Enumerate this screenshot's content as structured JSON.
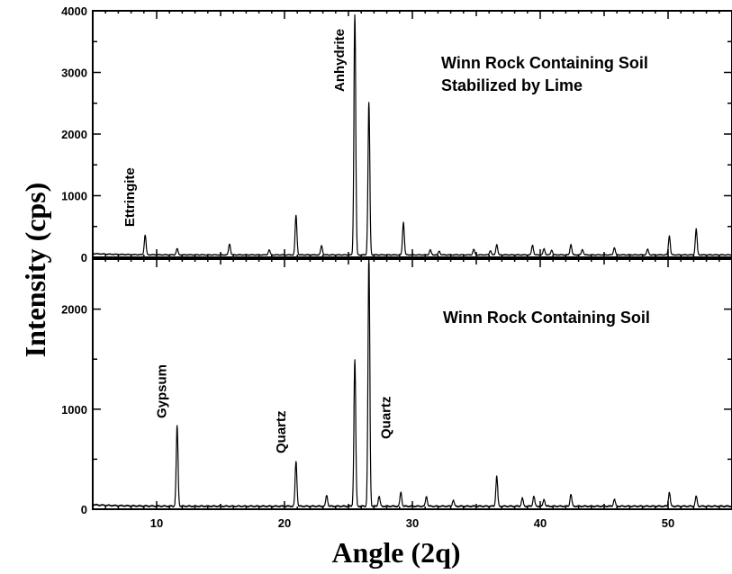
{
  "chart_data": {
    "type": "line",
    "xlabel": "Angle (2q)",
    "ylabel": "Intensity (cps)",
    "xlim": [
      5,
      55
    ],
    "x_ticks": [
      10,
      20,
      30,
      40,
      50
    ],
    "grid": false,
    "panels": [
      {
        "id": "top",
        "title_lines": [
          "Winn Rock Containing Soil",
          "Stabilized by Lime"
        ],
        "ylim": [
          0,
          4000
        ],
        "y_ticks": [
          0,
          1000,
          2000,
          3000,
          4000
        ],
        "baseline": 40,
        "peaks": [
          [
            9.1,
            320
          ],
          [
            11.6,
            100
          ],
          [
            15.7,
            180
          ],
          [
            18.8,
            80
          ],
          [
            20.9,
            640
          ],
          [
            22.9,
            150
          ],
          [
            25.5,
            3900
          ],
          [
            26.6,
            2470
          ],
          [
            29.3,
            530
          ],
          [
            31.4,
            80
          ],
          [
            32.1,
            60
          ],
          [
            34.8,
            90
          ],
          [
            36.1,
            70
          ],
          [
            36.6,
            170
          ],
          [
            39.4,
            160
          ],
          [
            40.3,
            100
          ],
          [
            40.9,
            80
          ],
          [
            42.4,
            170
          ],
          [
            43.3,
            90
          ],
          [
            45.8,
            120
          ],
          [
            48.4,
            90
          ],
          [
            50.1,
            310
          ],
          [
            52.2,
            420
          ]
        ],
        "annotations": [
          {
            "label": "Ettringite",
            "x": 9.1
          },
          {
            "label": "Anhydrite",
            "x": 25.5
          }
        ]
      },
      {
        "id": "bottom",
        "title_lines": [
          "Winn Rock Containing Soil"
        ],
        "ylim": [
          0,
          2500
        ],
        "y_ticks": [
          0,
          1000,
          2000
        ],
        "baseline": 30,
        "peaks": [
          [
            11.6,
            800
          ],
          [
            20.9,
            450
          ],
          [
            23.3,
            110
          ],
          [
            25.5,
            1460
          ],
          [
            26.6,
            2500
          ],
          [
            27.4,
            100
          ],
          [
            29.1,
            140
          ],
          [
            31.1,
            100
          ],
          [
            33.2,
            60
          ],
          [
            36.6,
            300
          ],
          [
            38.6,
            80
          ],
          [
            39.5,
            100
          ],
          [
            40.3,
            70
          ],
          [
            42.4,
            120
          ],
          [
            45.8,
            70
          ],
          [
            50.1,
            140
          ],
          [
            52.2,
            100
          ]
        ],
        "annotations": [
          {
            "label": "Gypsum",
            "x": 11.6
          },
          {
            "label": "Quartz",
            "x": 20.9
          },
          {
            "label": "Quartz",
            "x": 26.6
          }
        ]
      }
    ]
  }
}
